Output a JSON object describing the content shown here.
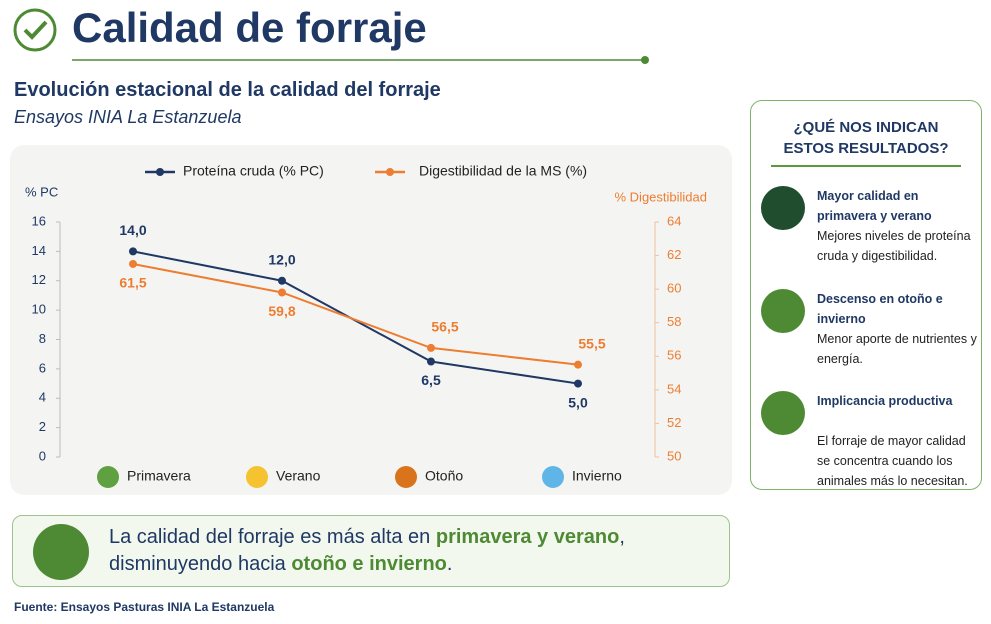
{
  "header": {
    "title": "Calidad de forraje",
    "subtitle": "Evolución estacional de la calidad del forraje",
    "source_line": "Ensayos INIA La Estanzuela"
  },
  "chart_data": {
    "type": "line",
    "categories": [
      "Primavera",
      "Verano",
      "Otoño",
      "Invierno"
    ],
    "series": [
      {
        "name": "Proteína cruda (% PC)",
        "color": "#1f3864",
        "values": [
          14,
          12,
          6.5,
          5
        ],
        "value_labels": [
          "14,0",
          "12,0",
          "6,5",
          "5,0"
        ]
      },
      {
        "name": "Digestibilidad de la MS (%)",
        "color": "#ed7d31",
        "axis": "y2",
        "values": [
          61.5,
          59.8,
          56.5,
          55.5
        ],
        "value_labels": [
          "61,5",
          "59,8",
          "56,5",
          "55,5"
        ]
      }
    ],
    "ylabel": "% PC",
    "y2label": "% Digestibilidad",
    "ylim": [
      0,
      16
    ],
    "yticks": [
      0,
      2,
      4,
      6,
      8,
      10,
      12,
      14,
      16
    ],
    "y2lim": [
      50,
      64
    ],
    "y2ticks": [
      50,
      52,
      54,
      56,
      58,
      60,
      62,
      64
    ],
    "grid": false,
    "legend": "top"
  },
  "panel": {
    "heading": "¿QUÉ NOS INDICAN ESTOS RESULTADOS?",
    "items": [
      {
        "title": "Mayor calidad en primavera y verano",
        "text": "Mejores niveles de proteína cruda y digestibilidad."
      },
      {
        "title": "Descenso en otoño e invierno",
        "text": "Menor aporte de nutrientes y energía."
      },
      {
        "title": "Implicancia productiva",
        "text": "El forraje de mayor calidad se concentra cuando los animales más lo necesitan."
      }
    ]
  },
  "message": [
    "La calidad del forraje es más alta en",
    "primavera y verano",
    ", disminuyendo hacia",
    "otoño e invierno",
    "."
  ],
  "footer": "Fuente: Ensayos Pasturas INIA La Estanzuela"
}
